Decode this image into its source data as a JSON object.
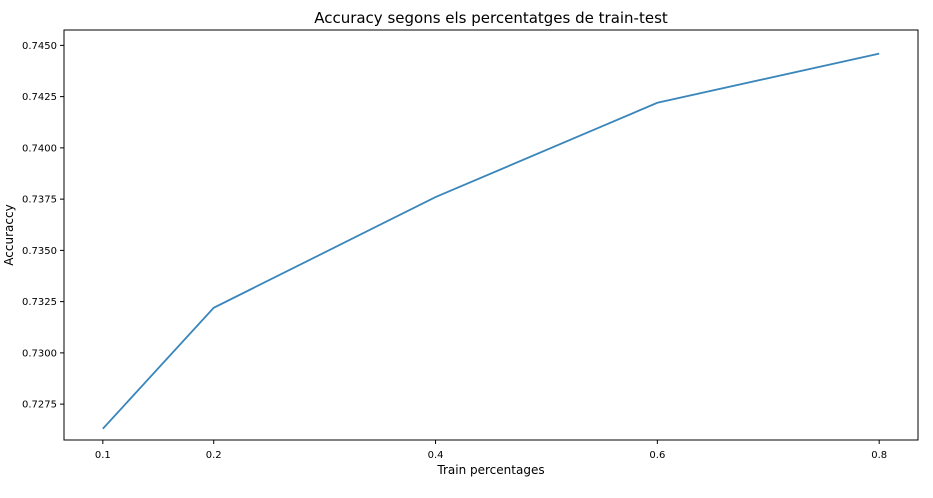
{
  "chart_data": {
    "type": "line",
    "title": "Accuracy segons els percentatges de train-test",
    "xlabel": "Train percentages",
    "ylabel": "Accuraccy",
    "x": [
      0.1,
      0.2,
      0.4,
      0.6,
      0.8
    ],
    "xticks": [
      "0.1",
      "0.2",
      "0.4",
      "0.6",
      "0.8"
    ],
    "xlim": [
      0.065,
      0.835
    ],
    "ylim": [
      0.72575,
      0.74575
    ],
    "yticks": [
      "0.7275",
      "0.7300",
      "0.7325",
      "0.7350",
      "0.7375",
      "0.7400",
      "0.7425",
      "0.7450"
    ],
    "grid": false,
    "series": [
      {
        "color": "#3a86bb",
        "values": [
          0.7263,
          0.7322,
          0.7376,
          0.7422,
          0.7446
        ]
      }
    ]
  }
}
